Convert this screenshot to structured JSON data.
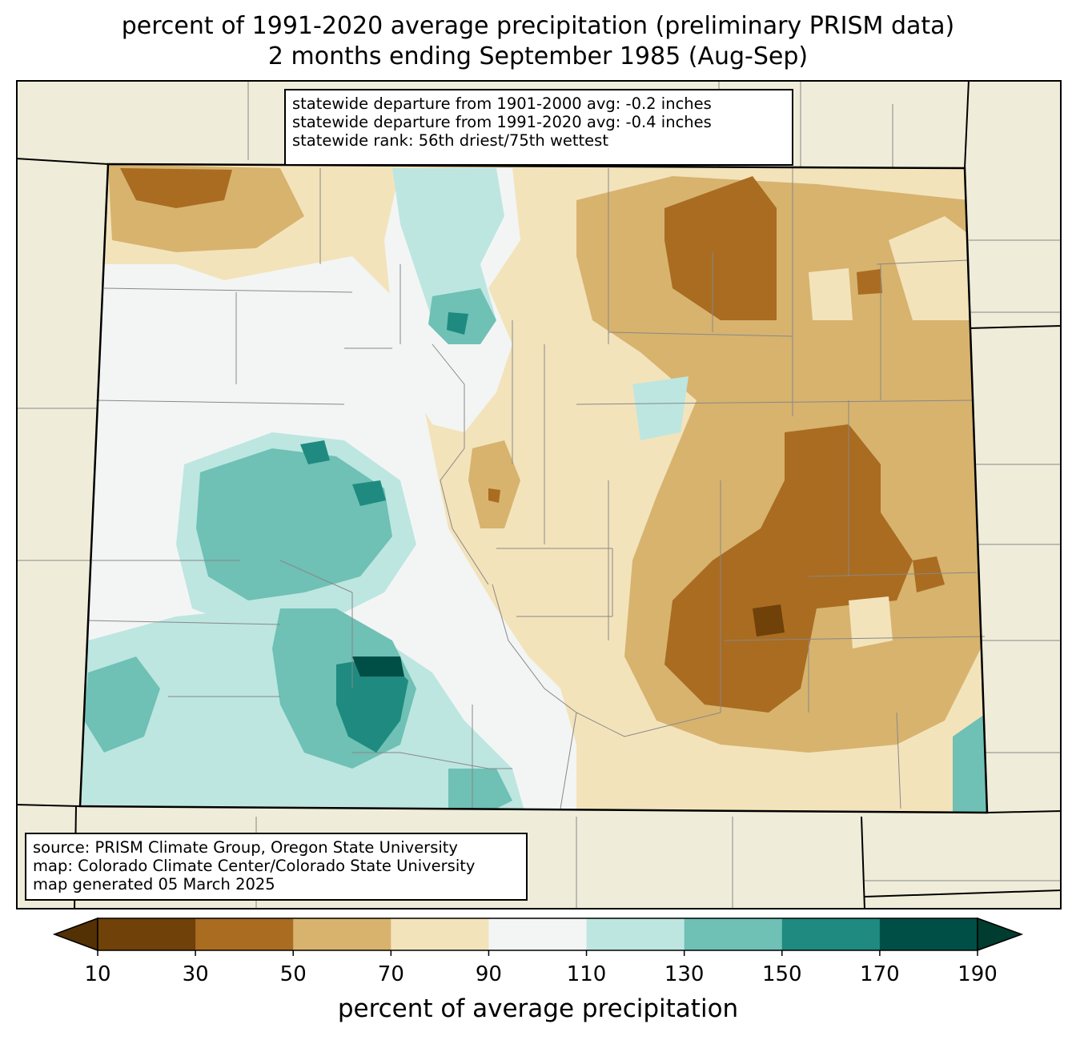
{
  "title": {
    "line1": "percent of 1991-2020 average precipitation (preliminary PRISM data)",
    "line2": "2 months ending September 1985 (Aug-Sep)"
  },
  "stats": {
    "line1": "statewide departure from 1901-2000 avg: -0.2 inches",
    "line2": "statewide departure from 1991-2020 avg: -0.4 inches",
    "line3": "statewide rank: 56th driest/75th wettest"
  },
  "source": {
    "line1": "source: PRISM Climate Group, Oregon State University",
    "line2": "map: Colorado Climate Center/Colorado State University",
    "line3": "map generated 05 March 2025"
  },
  "colorbar": {
    "label": "percent of average precipitation",
    "ticks": [
      "10",
      "30",
      "50",
      "70",
      "90",
      "110",
      "130",
      "150",
      "170",
      "190"
    ],
    "colors": {
      "under": "#543005",
      "bins": [
        "#704108",
        "#a96c21",
        "#d7b36e",
        "#f3e3bb",
        "#f3f5f4",
        "#bde6e1",
        "#6fc0b5",
        "#1f8a80",
        "#004f46"
      ],
      "over": "#003c30"
    }
  },
  "map": {
    "background": "#efedd9",
    "dominant_east": "#d7b36e",
    "dominant_west": "#bde6e1"
  }
}
